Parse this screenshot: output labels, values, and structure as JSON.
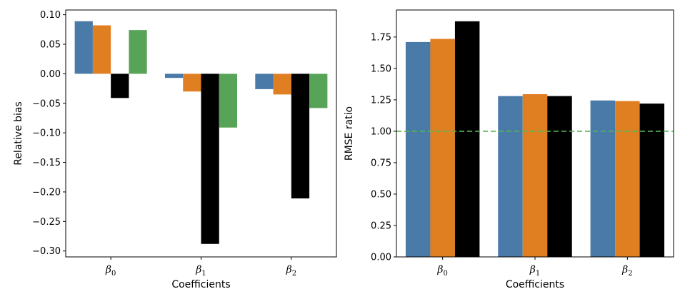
{
  "chart_data": [
    {
      "type": "bar",
      "categories": [
        "β0",
        "β1",
        "β2"
      ],
      "category_symbol": "β",
      "category_subscripts": [
        "0",
        "1",
        "2"
      ],
      "series": [
        {
          "color": "#4a7aa8",
          "values": [
            0.089,
            -0.007,
            -0.026
          ]
        },
        {
          "color": "#e07f22",
          "values": [
            0.082,
            -0.03,
            -0.035
          ]
        },
        {
          "color": "#000000",
          "values": [
            -0.041,
            -0.288,
            -0.211
          ]
        },
        {
          "color": "#57a357",
          "values": [
            0.074,
            -0.091,
            -0.058
          ]
        }
      ],
      "xlabel": "Coefficients",
      "ylabel": "Relative bias",
      "ylim": [
        -0.31,
        0.108
      ],
      "yticks": [
        0.1,
        0.05,
        0.0,
        -0.05,
        -0.1,
        -0.15,
        -0.2,
        -0.25,
        -0.3
      ],
      "ytick_labels": [
        "0.10",
        "0.05",
        "0.00",
        "−0.05",
        "−0.10",
        "−0.15",
        "−0.20",
        "−0.25",
        "−0.30"
      ],
      "grid": false
    },
    {
      "type": "bar",
      "categories": [
        "β0",
        "β1",
        "β2"
      ],
      "category_symbol": "β",
      "category_subscripts": [
        "0",
        "1",
        "2"
      ],
      "series": [
        {
          "color": "#4a7aa8",
          "values": [
            1.71,
            1.28,
            1.245
          ]
        },
        {
          "color": "#e07f22",
          "values": [
            1.735,
            1.295,
            1.24
          ]
        },
        {
          "color": "#000000",
          "values": [
            1.875,
            1.28,
            1.22
          ]
        }
      ],
      "reference_line": {
        "y": 1.0,
        "color": "#57b357",
        "style": "dashed"
      },
      "xlabel": "Coefficients",
      "ylabel": "RMSE ratio",
      "ylim": [
        0,
        1.965
      ],
      "yticks": [
        0.0,
        0.25,
        0.5,
        0.75,
        1.0,
        1.25,
        1.5,
        1.75
      ],
      "ytick_labels": [
        "0.00",
        "0.25",
        "0.50",
        "0.75",
        "1.00",
        "1.25",
        "1.50",
        "1.75"
      ],
      "grid": false
    }
  ]
}
